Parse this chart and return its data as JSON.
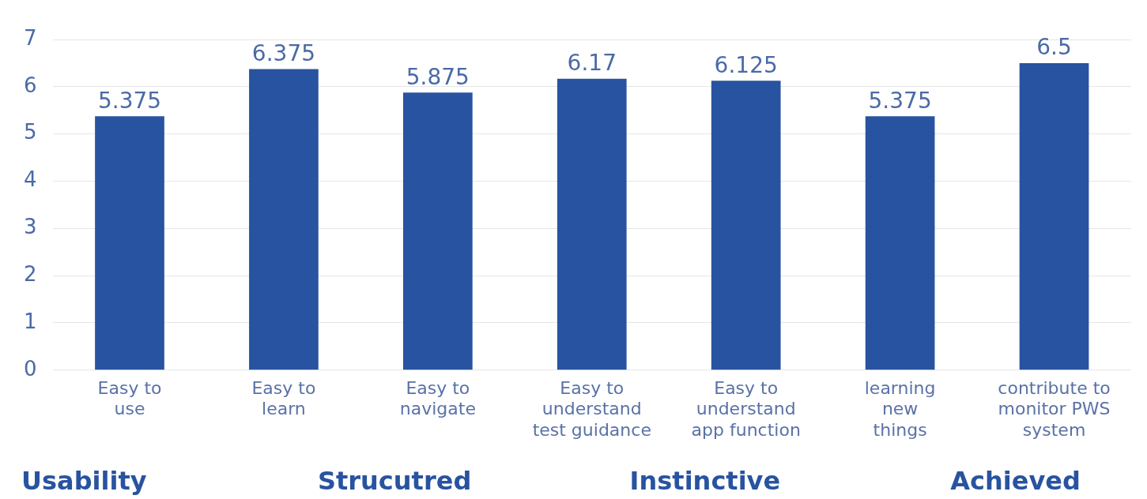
{
  "chart_data": {
    "type": "bar",
    "categories": [
      "Easy to\nuse",
      "Easy to\nlearn",
      "Easy to\nnavigate",
      "Easy to\nunderstand\ntest guidance",
      "Easy to\nunderstand\napp function",
      "learning\nnew\nthings",
      "contribute to\nmonitor PWS\nsystem"
    ],
    "values": [
      5.375,
      6.375,
      5.875,
      6.17,
      6.125,
      5.375,
      6.5
    ],
    "color": "#2853a0",
    "ylim": [
      0,
      7
    ],
    "yticks": [
      0,
      1,
      2,
      3,
      4,
      5,
      6,
      7
    ],
    "grid": "y",
    "legend": false,
    "data_labels": true,
    "annotations": [
      "Usability",
      "Strucutred",
      "Instinctive",
      "Achieved"
    ]
  }
}
